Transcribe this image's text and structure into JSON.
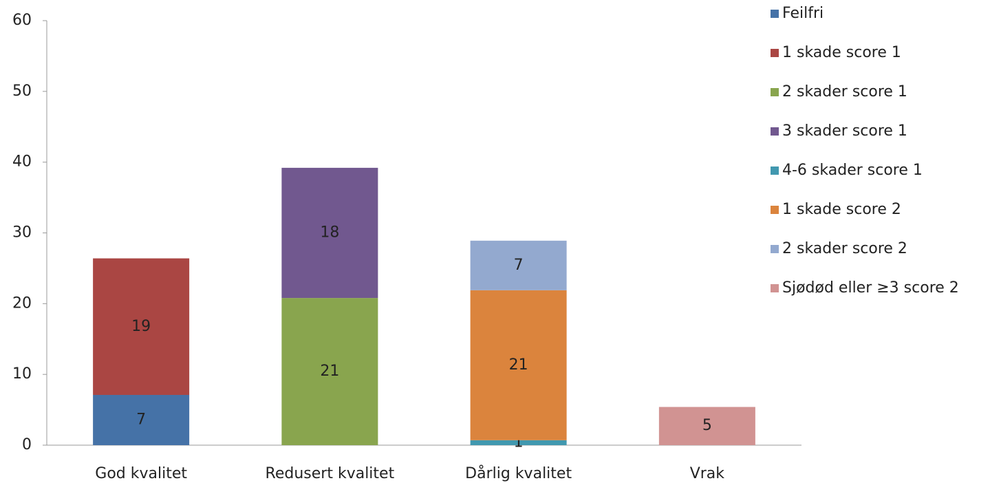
{
  "chart_data": {
    "type": "stacked_bar",
    "categories": [
      "God kvalitet",
      "Redusert kvalitet",
      "Dårlig kvalitet",
      "Vrak"
    ],
    "series": [
      {
        "name": "Feilfri",
        "color": "#4572a7",
        "values": [
          7.1,
          null,
          null,
          null
        ],
        "value_labels": [
          "7",
          null,
          null,
          null
        ]
      },
      {
        "name": "1 skade score 1",
        "color": "#aa4643",
        "values": [
          19.3,
          null,
          null,
          null
        ],
        "value_labels": [
          "19",
          null,
          null,
          null
        ]
      },
      {
        "name": "2 skader score 1",
        "color": "#89a54e",
        "values": [
          null,
          20.8,
          null,
          null
        ],
        "value_labels": [
          null,
          "21",
          null,
          null
        ]
      },
      {
        "name": "3 skader score 1",
        "color": "#71588f",
        "values": [
          null,
          18.4,
          null,
          null
        ],
        "value_labels": [
          null,
          "18",
          null,
          null
        ]
      },
      {
        "name": "4-6 skader score 1",
        "color": "#4198af",
        "values": [
          null,
          null,
          0.7,
          null
        ],
        "value_labels": [
          null,
          null,
          "1",
          null
        ]
      },
      {
        "name": "1 skade score 2",
        "color": "#db843d",
        "values": [
          null,
          null,
          21.2,
          null
        ],
        "value_labels": [
          null,
          null,
          "21",
          null
        ]
      },
      {
        "name": "2 skader score 2",
        "color": "#93a9cf",
        "values": [
          null,
          null,
          7.0,
          null
        ],
        "value_labels": [
          null,
          null,
          "7",
          null
        ]
      },
      {
        "name": "Sjødød eller ≥3 score 2",
        "color": "#d19392",
        "values": [
          null,
          null,
          null,
          5.4
        ],
        "value_labels": [
          null,
          null,
          null,
          "5"
        ]
      }
    ],
    "ylim": [
      0,
      60
    ],
    "yticks": [
      0,
      10,
      20,
      30,
      40,
      50,
      60
    ],
    "legend": "right"
  }
}
